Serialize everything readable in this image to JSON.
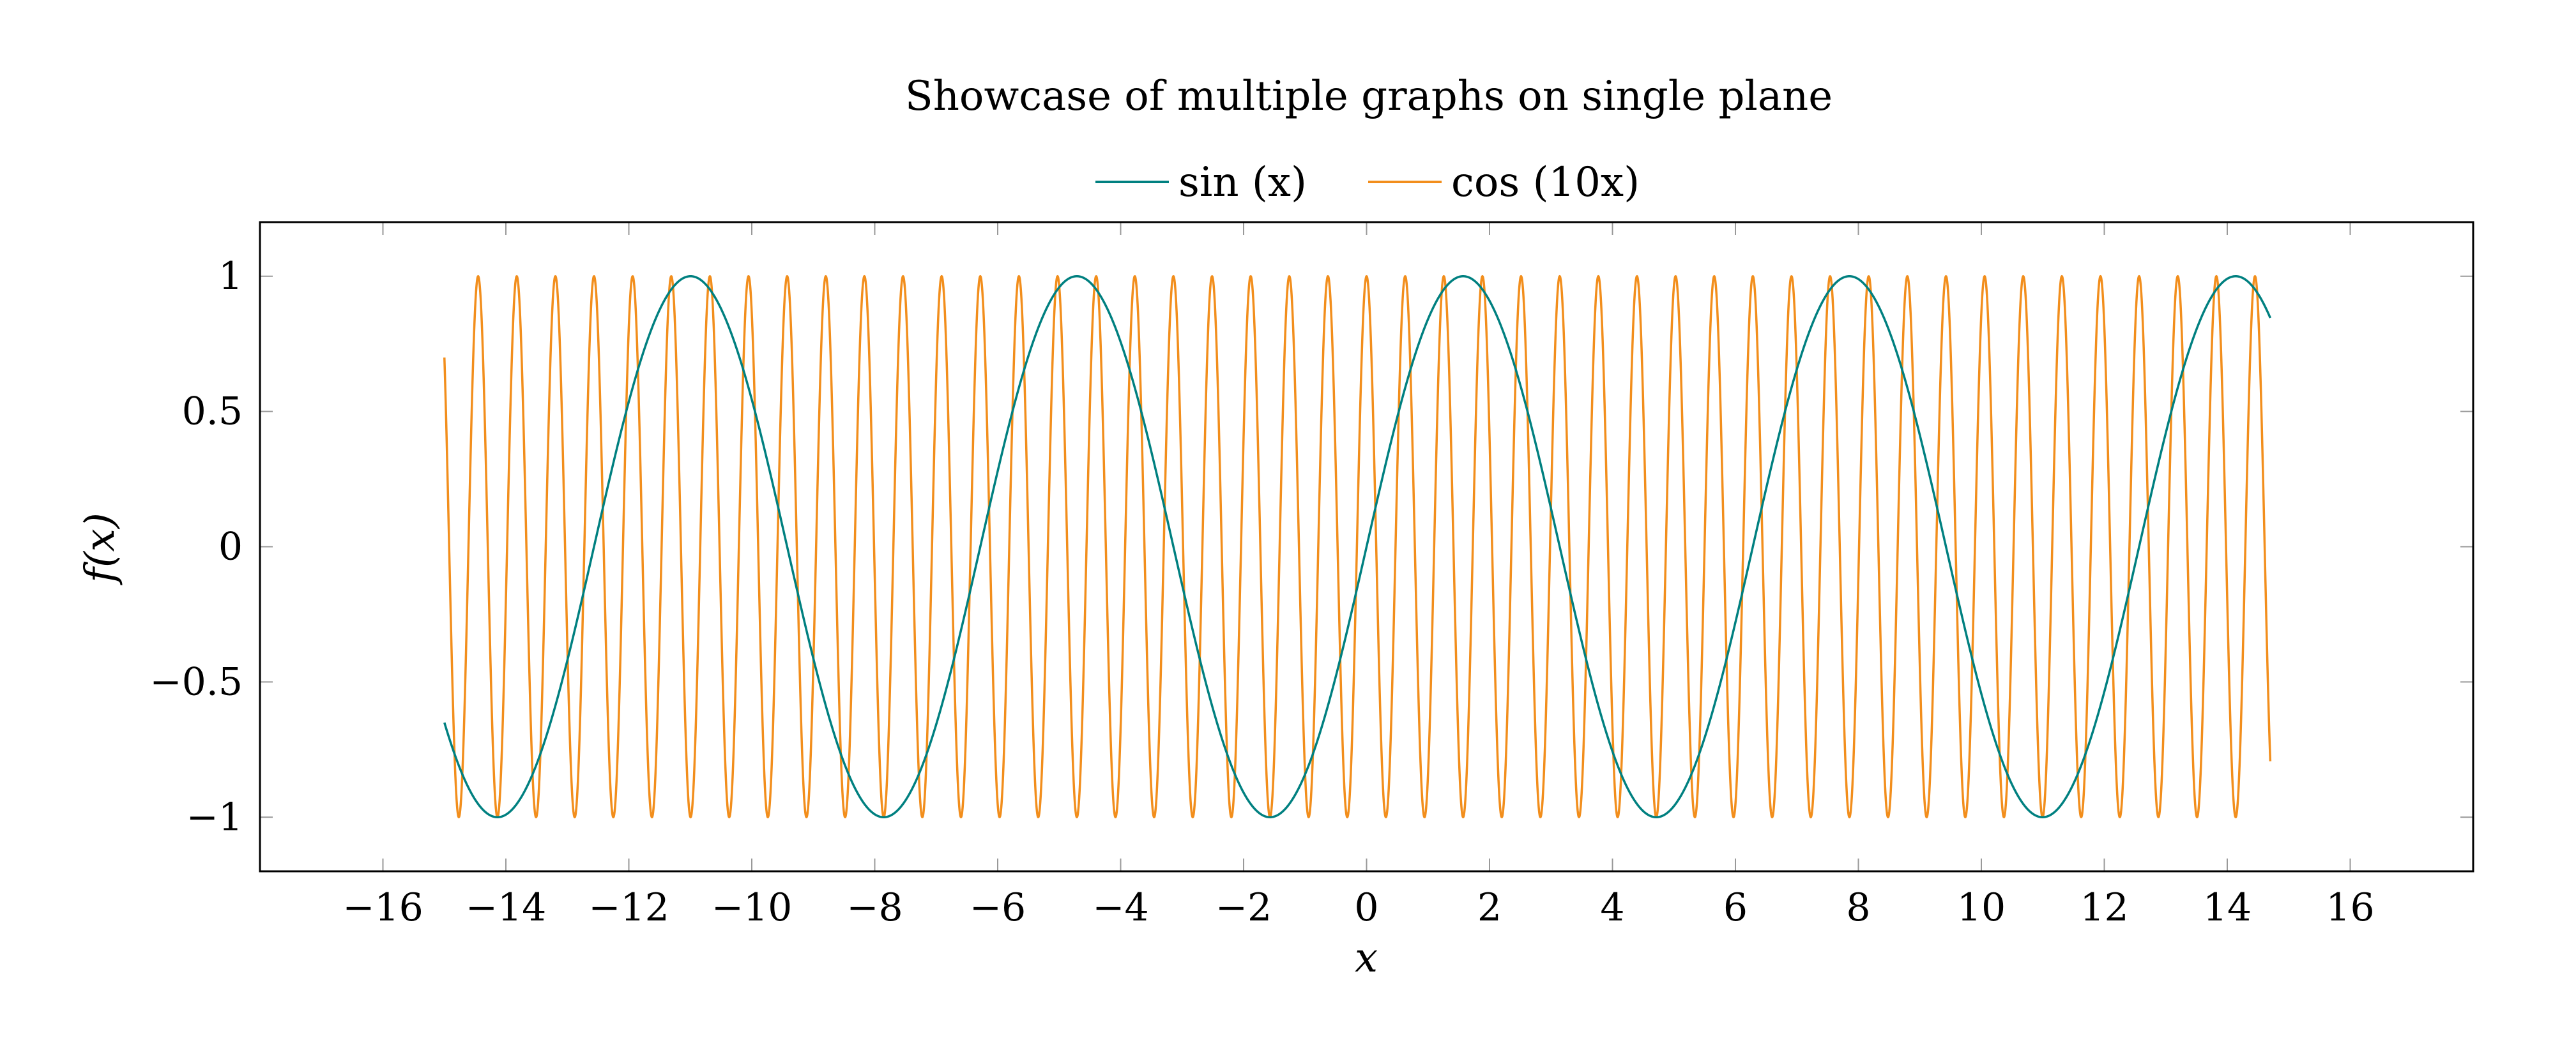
{
  "chart_data": {
    "type": "line",
    "title": "Showcase of multiple graphs on single plane",
    "xlabel": "x",
    "ylabel": "f(x)",
    "xlim": [
      -18,
      18
    ],
    "ylim": [
      -1.2,
      1.2
    ],
    "x_ticks": [
      -16,
      -14,
      -12,
      -10,
      -8,
      -6,
      -4,
      -2,
      0,
      2,
      4,
      6,
      8,
      10,
      12,
      14,
      16
    ],
    "x_tick_labels": [
      "−16",
      "−14",
      "−12",
      "−10",
      "−8",
      "−6",
      "−4",
      "−2",
      "0",
      "2",
      "4",
      "6",
      "8",
      "10",
      "12",
      "14",
      "16"
    ],
    "y_ticks": [
      -1,
      -0.5,
      0,
      0.5,
      1
    ],
    "y_tick_labels": [
      "−1",
      "−0.5",
      "0",
      "0.5",
      "1"
    ],
    "grid": false,
    "legend_position": "top-center",
    "series": [
      {
        "name": "sin (x)",
        "color": "#008080",
        "function": "sin(x)",
        "x_range": [
          -15,
          14.7
        ]
      },
      {
        "name": "cos (10x)",
        "color": "#f28e1c",
        "function": "cos(10x)",
        "x_range": [
          -15,
          14.7
        ]
      }
    ]
  }
}
